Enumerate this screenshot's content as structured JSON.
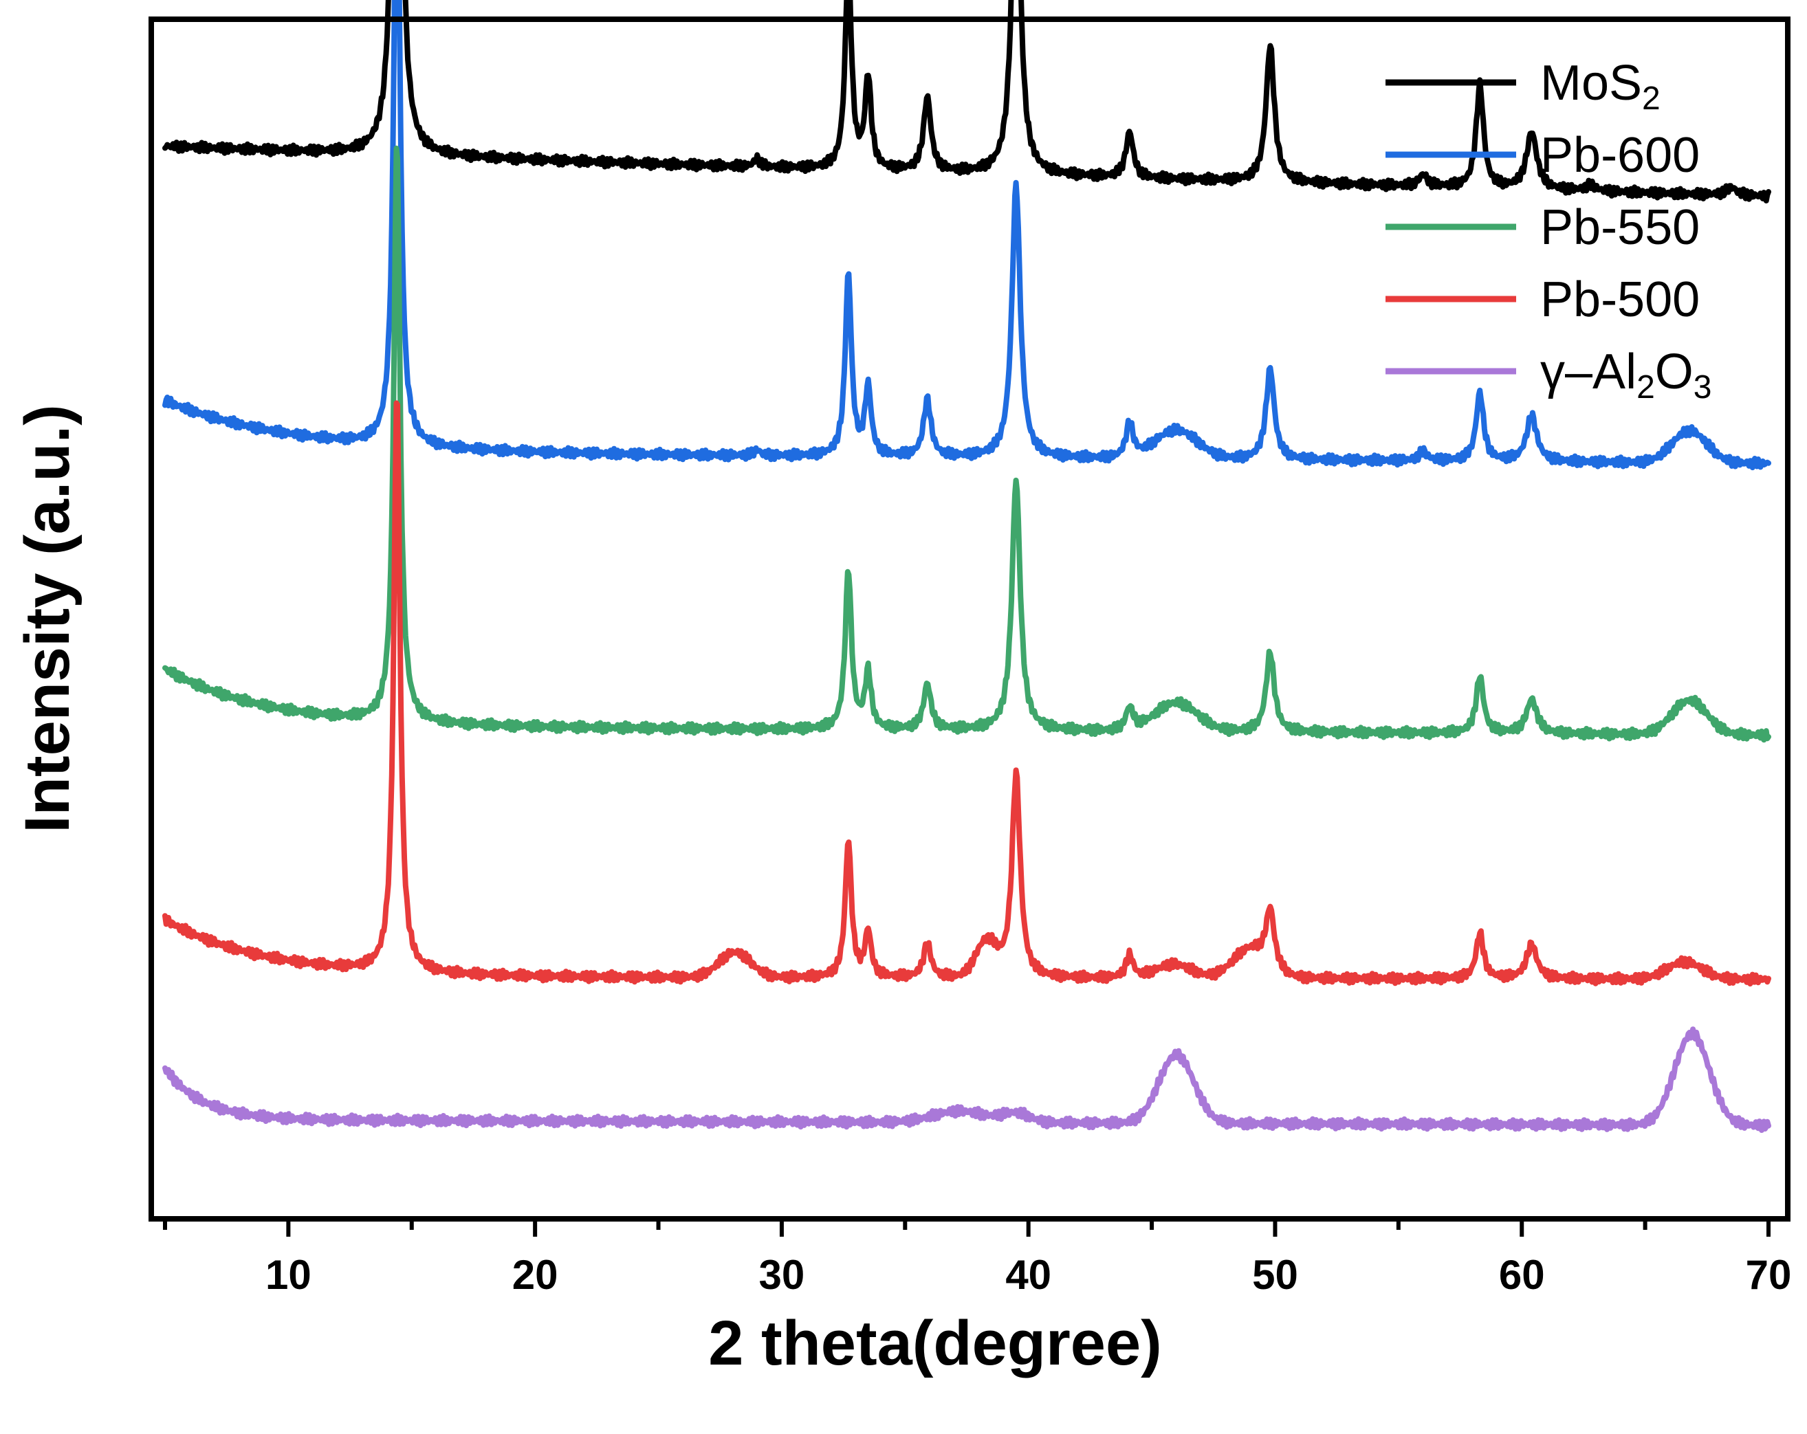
{
  "chart_data": {
    "type": "line",
    "title": "",
    "xlabel": "2 theta(degree)",
    "ylabel": "Intensity (a.u.)",
    "xlim": [
      5,
      70
    ],
    "ylim": [
      0,
      100
    ],
    "x_ticks": [
      10,
      20,
      30,
      40,
      50,
      60,
      70
    ],
    "grid": false,
    "legend_position": "top-right",
    "peak_positions": [
      14.4,
      29.0,
      32.7,
      33.5,
      35.9,
      39.5,
      44.1,
      49.8,
      56.0,
      58.3,
      60.4,
      62.8,
      68.5
    ],
    "series": [
      {
        "name": "MoS2",
        "legend": {
          "main": "MoS",
          "sub": "2",
          "tail": ""
        },
        "color": "#000000",
        "baseline_start": 90.3,
        "baseline_end": 86.4,
        "background_hump": 0.5,
        "hump_decay": 15,
        "peaks": [
          {
            "center": 14.4,
            "height": 85.0,
            "width": 0.15
          },
          {
            "center": 29.0,
            "height": 0.7,
            "width": 0.15
          },
          {
            "center": 32.7,
            "height": 18.0,
            "width": 0.15
          },
          {
            "center": 33.5,
            "height": 8.0,
            "width": 0.15
          },
          {
            "center": 35.9,
            "height": 6.5,
            "width": 0.18
          },
          {
            "center": 39.5,
            "height": 31.0,
            "width": 0.2
          },
          {
            "center": 44.1,
            "height": 4.0,
            "width": 0.18
          },
          {
            "center": 49.8,
            "height": 12.0,
            "width": 0.2
          },
          {
            "center": 56.0,
            "height": 1.0,
            "width": 0.2
          },
          {
            "center": 58.3,
            "height": 9.0,
            "width": 0.18
          },
          {
            "center": 60.4,
            "height": 5.0,
            "width": 0.25
          },
          {
            "center": 62.8,
            "height": 0.5,
            "width": 0.25
          },
          {
            "center": 68.5,
            "height": 0.7,
            "width": 0.25
          }
        ],
        "broad_humps": []
      },
      {
        "name": "Pb-600",
        "legend": {
          "main": "Pb-600",
          "sub": "",
          "tail": ""
        },
        "color": "#1f6ce0",
        "baseline_start": 64.0,
        "baseline_end": 63.0,
        "background_hump": 4.5,
        "hump_decay": 5,
        "peaks": [
          {
            "center": 14.4,
            "height": 56.0,
            "width": 0.15
          },
          {
            "center": 29.0,
            "height": 0.5,
            "width": 0.15
          },
          {
            "center": 32.7,
            "height": 16.0,
            "width": 0.15
          },
          {
            "center": 33.5,
            "height": 6.0,
            "width": 0.15
          },
          {
            "center": 35.9,
            "height": 5.0,
            "width": 0.18
          },
          {
            "center": 39.5,
            "height": 24.0,
            "width": 0.2
          },
          {
            "center": 44.1,
            "height": 3.0,
            "width": 0.18
          },
          {
            "center": 49.8,
            "height": 8.0,
            "width": 0.2
          },
          {
            "center": 56.0,
            "height": 0.8,
            "width": 0.2
          },
          {
            "center": 58.3,
            "height": 6.0,
            "width": 0.18
          },
          {
            "center": 60.4,
            "height": 4.0,
            "width": 0.25
          }
        ],
        "broad_humps": [
          {
            "center": 46.0,
            "height": 2.5,
            "width": 1.2
          },
          {
            "center": 66.8,
            "height": 2.8,
            "width": 1.0
          }
        ]
      },
      {
        "name": "Pb-550",
        "legend": {
          "main": "Pb-550",
          "sub": "",
          "tail": ""
        },
        "color": "#3fa66b",
        "baseline_start": 40.0,
        "baseline_end": 39.2,
        "background_hump": 5.0,
        "hump_decay": 4,
        "peaks": [
          {
            "center": 14.4,
            "height": 51.0,
            "width": 0.15
          },
          {
            "center": 32.7,
            "height": 14.0,
            "width": 0.15
          },
          {
            "center": 33.5,
            "height": 5.0,
            "width": 0.15
          },
          {
            "center": 35.9,
            "height": 4.0,
            "width": 0.18
          },
          {
            "center": 39.5,
            "height": 22.0,
            "width": 0.2
          },
          {
            "center": 44.1,
            "height": 2.0,
            "width": 0.18
          },
          {
            "center": 49.8,
            "height": 7.0,
            "width": 0.2
          },
          {
            "center": 58.3,
            "height": 5.0,
            "width": 0.18
          },
          {
            "center": 60.4,
            "height": 3.0,
            "width": 0.25
          }
        ],
        "broad_humps": [
          {
            "center": 46.0,
            "height": 2.5,
            "width": 1.2
          },
          {
            "center": 66.8,
            "height": 3.0,
            "width": 1.0
          }
        ]
      },
      {
        "name": "Pb-500",
        "legend": {
          "main": "Pb-500",
          "sub": "",
          "tail": ""
        },
        "color": "#e83b3b",
        "baseline_start": 18.0,
        "baseline_end": 17.8,
        "background_hump": 5.0,
        "hump_decay": 4,
        "peaks": [
          {
            "center": 14.4,
            "height": 51.0,
            "width": 0.15
          },
          {
            "center": 32.7,
            "height": 12.0,
            "width": 0.15
          },
          {
            "center": 33.5,
            "height": 4.0,
            "width": 0.15
          },
          {
            "center": 35.9,
            "height": 3.0,
            "width": 0.18
          },
          {
            "center": 39.5,
            "height": 18.0,
            "width": 0.2
          },
          {
            "center": 44.1,
            "height": 2.0,
            "width": 0.18
          },
          {
            "center": 49.8,
            "height": 5.0,
            "width": 0.2
          },
          {
            "center": 58.3,
            "height": 4.0,
            "width": 0.18
          },
          {
            "center": 60.4,
            "height": 3.0,
            "width": 0.25
          }
        ],
        "broad_humps": [
          {
            "center": 28.1,
            "height": 2.2,
            "width": 0.9
          },
          {
            "center": 38.3,
            "height": 3.0,
            "width": 0.6
          },
          {
            "center": 45.9,
            "height": 1.2,
            "width": 1.0
          },
          {
            "center": 49.0,
            "height": 2.5,
            "width": 1.0
          },
          {
            "center": 66.6,
            "height": 1.5,
            "width": 1.0
          }
        ]
      },
      {
        "name": "γ–Al2O3",
        "legend": {
          "main": "γ–Al",
          "sub": "2",
          "tail": "O",
          "sub2": "3"
        },
        "color": "#a978d8",
        "baseline_start": 5.5,
        "baseline_end": 5.0,
        "background_hump": 4.5,
        "hump_decay": 1.5,
        "peaks": [],
        "broad_humps": [
          {
            "center": 37.2,
            "height": 1.0,
            "width": 1.5
          },
          {
            "center": 39.5,
            "height": 0.8,
            "width": 0.8
          },
          {
            "center": 46.0,
            "height": 6.0,
            "width": 1.0
          },
          {
            "center": 66.9,
            "height": 8.0,
            "width": 1.0
          }
        ]
      }
    ]
  }
}
